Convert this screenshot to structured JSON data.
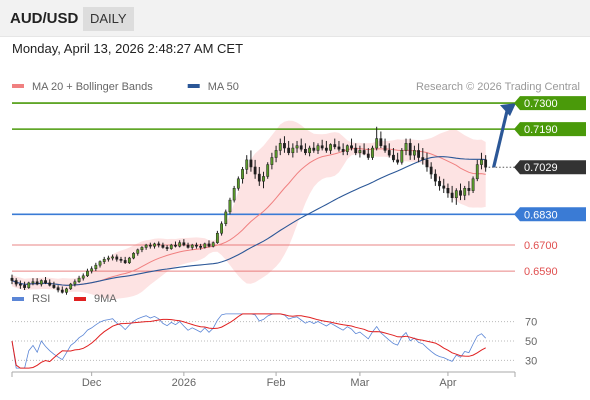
{
  "header": {
    "symbol": "AUD/USD",
    "timeframe": "DAILY",
    "datetime": "Monday, April 13, 2026 2:48:27 AM CET"
  },
  "chart_data": {
    "type": "candlestick",
    "source_note": "Research © 2026 Trading Central",
    "legend": [
      {
        "name": "MA 20 + Bollinger Bands",
        "color": "#f08080"
      },
      {
        "name": "MA 50",
        "color": "#2b5797"
      }
    ],
    "y_range": [
      0.651,
      0.733
    ],
    "x_axis": {
      "ticks": [
        {
          "label": "Dec",
          "index": 19
        },
        {
          "label": "2026",
          "index": 41
        },
        {
          "label": "Feb",
          "index": 63
        },
        {
          "label": "Mar",
          "index": 83
        },
        {
          "label": "Apr",
          "index": 104
        }
      ],
      "range": [
        0,
        120
      ]
    },
    "levels": [
      {
        "value": 0.73,
        "label": "0.7300",
        "kind": "resistance",
        "color": "#4a9a0a"
      },
      {
        "value": 0.719,
        "label": "0.7190",
        "kind": "resistance",
        "color": "#4a9a0a"
      },
      {
        "value": 0.7029,
        "label": "0.7029",
        "kind": "last",
        "color": "#333333"
      },
      {
        "value": 0.683,
        "label": "0.6830",
        "kind": "pivot",
        "color": "#3a7bd5"
      },
      {
        "value": 0.67,
        "label": "0.6700",
        "kind": "support",
        "color": "#e05050"
      },
      {
        "value": 0.659,
        "label": "0.6590",
        "kind": "support",
        "color": "#e05050"
      }
    ],
    "scenario_arrow": {
      "from": 0.7029,
      "to": 0.73,
      "color": "#2b5797"
    },
    "candles": [
      [
        0.656,
        0.6575,
        0.6535,
        0.655
      ],
      [
        0.655,
        0.656,
        0.6525,
        0.6535
      ],
      [
        0.6535,
        0.655,
        0.6515,
        0.653
      ],
      [
        0.653,
        0.6545,
        0.651,
        0.652
      ],
      [
        0.652,
        0.6545,
        0.6515,
        0.654
      ],
      [
        0.654,
        0.656,
        0.653,
        0.6545
      ],
      [
        0.6545,
        0.656,
        0.653,
        0.6535
      ],
      [
        0.6535,
        0.6555,
        0.6525,
        0.655
      ],
      [
        0.655,
        0.6565,
        0.6535,
        0.654
      ],
      [
        0.654,
        0.6555,
        0.6525,
        0.653
      ],
      [
        0.653,
        0.6545,
        0.6515,
        0.652
      ],
      [
        0.652,
        0.653,
        0.65,
        0.651
      ],
      [
        0.651,
        0.6525,
        0.6495,
        0.65
      ],
      [
        0.65,
        0.652,
        0.649,
        0.6515
      ],
      [
        0.6515,
        0.654,
        0.651,
        0.6535
      ],
      [
        0.6535,
        0.6555,
        0.6525,
        0.6545
      ],
      [
        0.6545,
        0.657,
        0.654,
        0.656
      ],
      [
        0.656,
        0.658,
        0.655,
        0.657
      ],
      [
        0.657,
        0.66,
        0.6565,
        0.659
      ],
      [
        0.659,
        0.661,
        0.658,
        0.66
      ],
      [
        0.66,
        0.6625,
        0.659,
        0.6615
      ],
      [
        0.6615,
        0.6635,
        0.6605,
        0.663
      ],
      [
        0.663,
        0.665,
        0.662,
        0.664
      ],
      [
        0.664,
        0.6655,
        0.663,
        0.6645
      ],
      [
        0.6645,
        0.666,
        0.6635,
        0.665
      ],
      [
        0.665,
        0.666,
        0.663,
        0.664
      ],
      [
        0.664,
        0.665,
        0.6625,
        0.6635
      ],
      [
        0.6635,
        0.665,
        0.662,
        0.6625
      ],
      [
        0.6625,
        0.665,
        0.662,
        0.6645
      ],
      [
        0.6645,
        0.667,
        0.664,
        0.6665
      ],
      [
        0.6665,
        0.6685,
        0.6655,
        0.668
      ],
      [
        0.668,
        0.6695,
        0.667,
        0.669
      ],
      [
        0.669,
        0.6705,
        0.668,
        0.67
      ],
      [
        0.67,
        0.671,
        0.6685,
        0.6695
      ],
      [
        0.6695,
        0.671,
        0.6685,
        0.6705
      ],
      [
        0.6705,
        0.6715,
        0.669,
        0.67
      ],
      [
        0.67,
        0.671,
        0.6685,
        0.669
      ],
      [
        0.669,
        0.67,
        0.6675,
        0.6685
      ],
      [
        0.6685,
        0.6705,
        0.668,
        0.67
      ],
      [
        0.67,
        0.6715,
        0.669,
        0.6695
      ],
      [
        0.6695,
        0.672,
        0.669,
        0.671
      ],
      [
        0.671,
        0.6725,
        0.6695,
        0.67
      ],
      [
        0.67,
        0.671,
        0.6685,
        0.669
      ],
      [
        0.669,
        0.6705,
        0.668,
        0.67
      ],
      [
        0.67,
        0.671,
        0.6685,
        0.6695
      ],
      [
        0.6695,
        0.6705,
        0.668,
        0.669
      ],
      [
        0.669,
        0.671,
        0.6685,
        0.6705
      ],
      [
        0.6705,
        0.672,
        0.669,
        0.6695
      ],
      [
        0.6695,
        0.6715,
        0.669,
        0.671
      ],
      [
        0.671,
        0.676,
        0.6705,
        0.675
      ],
      [
        0.675,
        0.68,
        0.674,
        0.679
      ],
      [
        0.679,
        0.685,
        0.678,
        0.684
      ],
      [
        0.684,
        0.69,
        0.683,
        0.689
      ],
      [
        0.689,
        0.695,
        0.688,
        0.694
      ],
      [
        0.694,
        0.699,
        0.693,
        0.698
      ],
      [
        0.698,
        0.703,
        0.696,
        0.702
      ],
      [
        0.702,
        0.708,
        0.7,
        0.706
      ],
      [
        0.706,
        0.71,
        0.701,
        0.703
      ],
      [
        0.703,
        0.706,
        0.698,
        0.7
      ],
      [
        0.7,
        0.703,
        0.695,
        0.697
      ],
      [
        0.697,
        0.701,
        0.694,
        0.699
      ],
      [
        0.699,
        0.705,
        0.698,
        0.704
      ],
      [
        0.704,
        0.709,
        0.702,
        0.707
      ],
      [
        0.707,
        0.712,
        0.705,
        0.71
      ],
      [
        0.71,
        0.715,
        0.708,
        0.713
      ],
      [
        0.713,
        0.716,
        0.709,
        0.711
      ],
      [
        0.711,
        0.714,
        0.708,
        0.709
      ],
      [
        0.709,
        0.713,
        0.707,
        0.711
      ],
      [
        0.711,
        0.714,
        0.709,
        0.712
      ],
      [
        0.712,
        0.715,
        0.7095,
        0.7105
      ],
      [
        0.7105,
        0.713,
        0.708,
        0.709
      ],
      [
        0.709,
        0.712,
        0.7075,
        0.711
      ],
      [
        0.711,
        0.7135,
        0.709,
        0.71
      ],
      [
        0.71,
        0.713,
        0.7085,
        0.712
      ],
      [
        0.712,
        0.7145,
        0.71,
        0.711
      ],
      [
        0.711,
        0.714,
        0.709,
        0.71
      ],
      [
        0.71,
        0.713,
        0.7085,
        0.7125
      ],
      [
        0.7125,
        0.715,
        0.7105,
        0.7115
      ],
      [
        0.7115,
        0.714,
        0.7095,
        0.7105
      ],
      [
        0.7105,
        0.713,
        0.708,
        0.7095
      ],
      [
        0.7095,
        0.7125,
        0.708,
        0.712
      ],
      [
        0.712,
        0.715,
        0.71,
        0.711
      ],
      [
        0.711,
        0.713,
        0.708,
        0.709
      ],
      [
        0.709,
        0.712,
        0.707,
        0.71
      ],
      [
        0.71,
        0.713,
        0.708,
        0.7085
      ],
      [
        0.7085,
        0.711,
        0.706,
        0.707
      ],
      [
        0.707,
        0.712,
        0.706,
        0.711
      ],
      [
        0.711,
        0.72,
        0.71,
        0.715
      ],
      [
        0.715,
        0.718,
        0.711,
        0.712
      ],
      [
        0.712,
        0.715,
        0.709,
        0.71
      ],
      [
        0.71,
        0.713,
        0.707,
        0.708
      ],
      [
        0.708,
        0.711,
        0.705,
        0.706
      ],
      [
        0.706,
        0.709,
        0.704,
        0.705
      ],
      [
        0.705,
        0.711,
        0.704,
        0.71
      ],
      [
        0.71,
        0.715,
        0.708,
        0.713
      ],
      [
        0.713,
        0.715,
        0.706,
        0.708
      ],
      [
        0.708,
        0.712,
        0.706,
        0.71
      ],
      [
        0.71,
        0.713,
        0.705,
        0.707
      ],
      [
        0.707,
        0.711,
        0.704,
        0.706
      ],
      [
        0.706,
        0.709,
        0.701,
        0.703
      ],
      [
        0.703,
        0.705,
        0.698,
        0.7
      ],
      [
        0.7,
        0.702,
        0.695,
        0.697
      ],
      [
        0.697,
        0.699,
        0.693,
        0.695
      ],
      [
        0.695,
        0.698,
        0.692,
        0.694
      ],
      [
        0.694,
        0.696,
        0.69,
        0.692
      ],
      [
        0.692,
        0.695,
        0.688,
        0.69
      ],
      [
        0.69,
        0.694,
        0.687,
        0.693
      ],
      [
        0.693,
        0.696,
        0.689,
        0.691
      ],
      [
        0.691,
        0.695,
        0.689,
        0.694
      ],
      [
        0.694,
        0.697,
        0.691,
        0.693
      ],
      [
        0.693,
        0.699,
        0.692,
        0.698
      ],
      [
        0.698,
        0.706,
        0.697,
        0.704
      ],
      [
        0.704,
        0.709,
        0.702,
        0.706
      ],
      [
        0.706,
        0.708,
        0.701,
        0.7029
      ]
    ],
    "rsi_panel": {
      "legend": [
        {
          "name": "RSI",
          "color": "#5b86d6"
        },
        {
          "name": "9MA",
          "color": "#e02020"
        }
      ],
      "levels": [
        70,
        50,
        30
      ],
      "y_range": [
        20,
        80
      ]
    }
  }
}
